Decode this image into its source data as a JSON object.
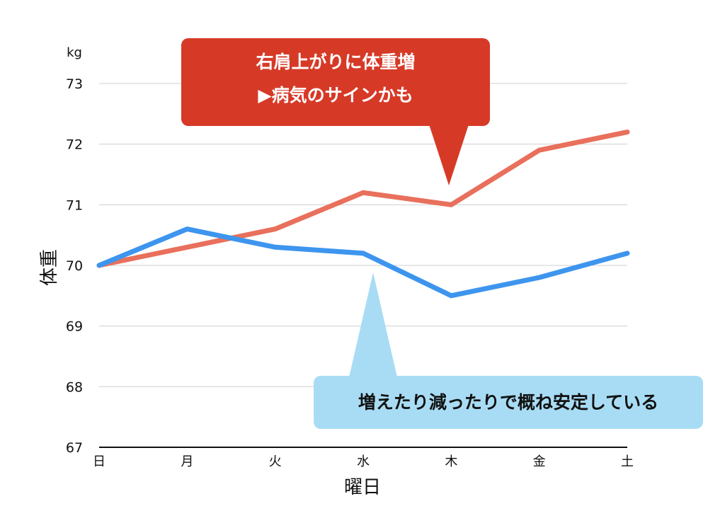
{
  "chart_data": {
    "type": "line",
    "categories": [
      "日",
      "月",
      "火",
      "水",
      "木",
      "金",
      "土"
    ],
    "series": [
      {
        "values": [
          70.0,
          70.3,
          70.6,
          71.2,
          71.0,
          71.9,
          72.2
        ],
        "color": "#e8705c"
      },
      {
        "values": [
          70.0,
          70.6,
          70.3,
          70.2,
          69.5,
          69.8,
          70.2
        ],
        "color": "#3d95ee"
      }
    ],
    "xlabel": "曜日",
    "ylabel": "体重",
    "yunit": "kg",
    "ylim": [
      67,
      73
    ],
    "yticks": [
      "67",
      "68",
      "69",
      "70",
      "71",
      "72",
      "73"
    ],
    "grid": true,
    "annotations": [
      {
        "lines": [
          "右肩上がりに体重増",
          "▶病気のサインかも"
        ],
        "color": "#d63a27",
        "text_color": "#ffffff",
        "points_to": {
          "category": "木",
          "series": 0
        }
      },
      {
        "lines": [
          "増えたり減ったりで概ね安定している"
        ],
        "color": "#a8dcf4",
        "text_color": "#111111",
        "points_to": {
          "category": "水",
          "series": 1
        }
      }
    ]
  }
}
